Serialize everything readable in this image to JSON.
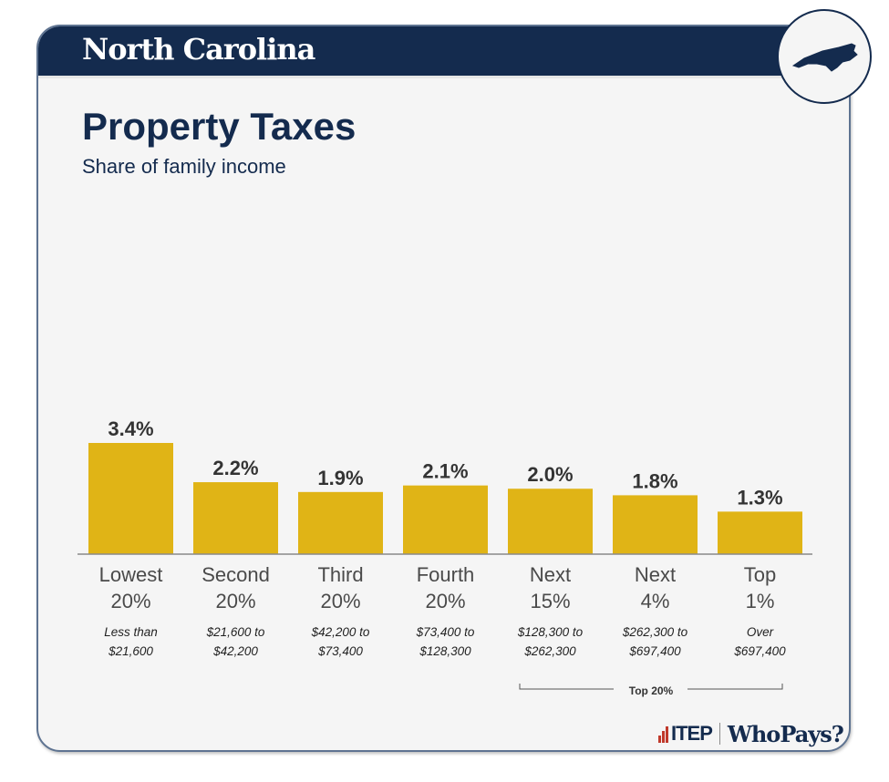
{
  "header": {
    "state": "North Carolina",
    "state_icon": "north-carolina-map-icon"
  },
  "title": "Property Taxes",
  "subtitle": "Share of family income",
  "chart_data": {
    "type": "bar",
    "title": "Property Taxes",
    "subtitle": "Share of family income",
    "xlabel": "",
    "ylabel": "",
    "ylim": [
      0,
      3.4
    ],
    "grid": false,
    "categories": [
      "Lowest 20%",
      "Second 20%",
      "Third 20%",
      "Fourth 20%",
      "Next 15%",
      "Next 4%",
      "Top 1%"
    ],
    "category_lines": [
      [
        "Lowest",
        "20%"
      ],
      [
        "Second",
        "20%"
      ],
      [
        "Third",
        "20%"
      ],
      [
        "Fourth",
        "20%"
      ],
      [
        "Next",
        "15%"
      ],
      [
        "Next",
        "4%"
      ],
      [
        "Top",
        "1%"
      ]
    ],
    "income_ranges": [
      [
        "Less than",
        "$21,600"
      ],
      [
        "$21,600 to",
        "$42,200"
      ],
      [
        "$42,200 to",
        "$73,400"
      ],
      [
        "$73,400 to",
        "$128,300"
      ],
      [
        "$128,300 to",
        "$262,300"
      ],
      [
        "$262,300 to",
        "$697,400"
      ],
      [
        "Over",
        "$697,400"
      ]
    ],
    "values": [
      3.4,
      2.2,
      1.9,
      2.1,
      2.0,
      1.8,
      1.3
    ],
    "value_labels": [
      "3.4%",
      "2.2%",
      "1.9%",
      "2.1%",
      "2.0%",
      "1.8%",
      "1.3%"
    ],
    "bar_color": "#e0b416",
    "group_bracket": {
      "label": "Top 20%",
      "spans": [
        "Next 15%",
        "Next 4%",
        "Top 1%"
      ]
    }
  },
  "footer": {
    "logo_text": "ITEP",
    "brand": "WhoPays?"
  }
}
